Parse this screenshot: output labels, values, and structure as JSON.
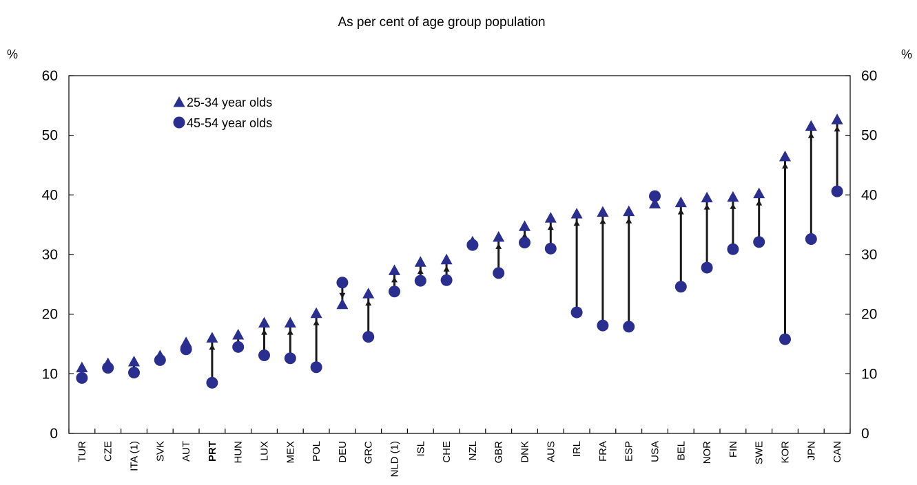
{
  "chart_data": {
    "type": "dot-range",
    "title": "As per cent of age group population",
    "y_unit_left": "%",
    "y_unit_right": "%",
    "ylim": [
      0,
      60
    ],
    "yticks": [
      0,
      10,
      20,
      30,
      40,
      50,
      60
    ],
    "grid": false,
    "legend_position": "top-left",
    "categories": [
      "TUR",
      "CZE",
      "ITA (1)",
      "SVK",
      "AUT",
      "PRT",
      "HUN",
      "LUX",
      "MEX",
      "POL",
      "DEU",
      "GRC",
      "NLD (1)",
      "ISL",
      "CHE",
      "NZL",
      "GBR",
      "DNK",
      "AUS",
      "IRL",
      "FRA",
      "ESP",
      "USA",
      "BEL",
      "NOR",
      "FIN",
      "SWE",
      "KOR",
      "JPN",
      "CAN"
    ],
    "highlight_category": "PRT",
    "series": [
      {
        "name": "25-34 year olds",
        "marker": "triangle",
        "values": [
          11,
          11.7,
          12,
          13,
          15.2,
          16,
          16.5,
          18.5,
          18.5,
          20.1,
          21.6,
          23.4,
          27.3,
          28.7,
          29.1,
          32.1,
          32.9,
          34.7,
          36.1,
          36.8,
          37.1,
          37.2,
          38.5,
          38.7,
          39.5,
          39.6,
          40.2,
          46.4,
          51.5,
          52.6
        ],
        "color": "#2a2f8f"
      },
      {
        "name": "45-54 year olds",
        "marker": "circle",
        "values": [
          9.3,
          11,
          10.2,
          12.3,
          14.1,
          8.5,
          14.5,
          13.1,
          12.6,
          11.1,
          25.3,
          16.2,
          23.8,
          25.6,
          25.7,
          31.6,
          26.9,
          32,
          31,
          20.3,
          18.1,
          17.9,
          39.8,
          24.6,
          27.8,
          30.9,
          32.1,
          15.8,
          32.6,
          40.6
        ],
        "color": "#2a2f8f"
      }
    ]
  }
}
